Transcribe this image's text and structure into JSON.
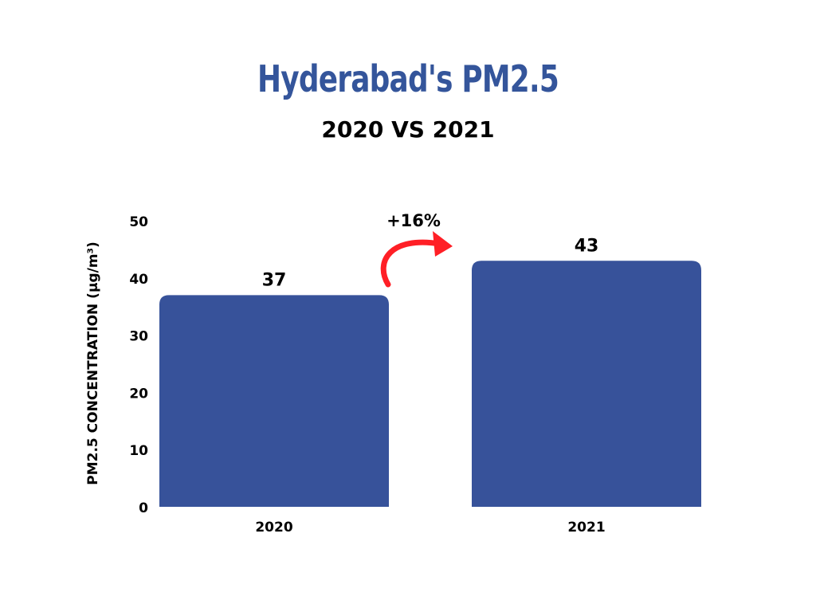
{
  "chart_data": {
    "type": "bar",
    "title": "Hyderabad's PM2.5",
    "subtitle": "2020 VS 2021",
    "ylabel": "PM2.5 CONCENTRATION (µg/m³)",
    "xlabel": "",
    "categories": [
      "2020",
      "2021"
    ],
    "values": [
      37,
      43
    ],
    "value_labels": [
      "37",
      "43"
    ],
    "ylim": [
      0,
      50
    ],
    "yticks": [
      "0",
      "10",
      "20",
      "30",
      "40",
      "50"
    ],
    "grid": false,
    "annotation": "+16%",
    "colors": {
      "bar": "#37529a",
      "arrow": "#ff1f26"
    }
  }
}
